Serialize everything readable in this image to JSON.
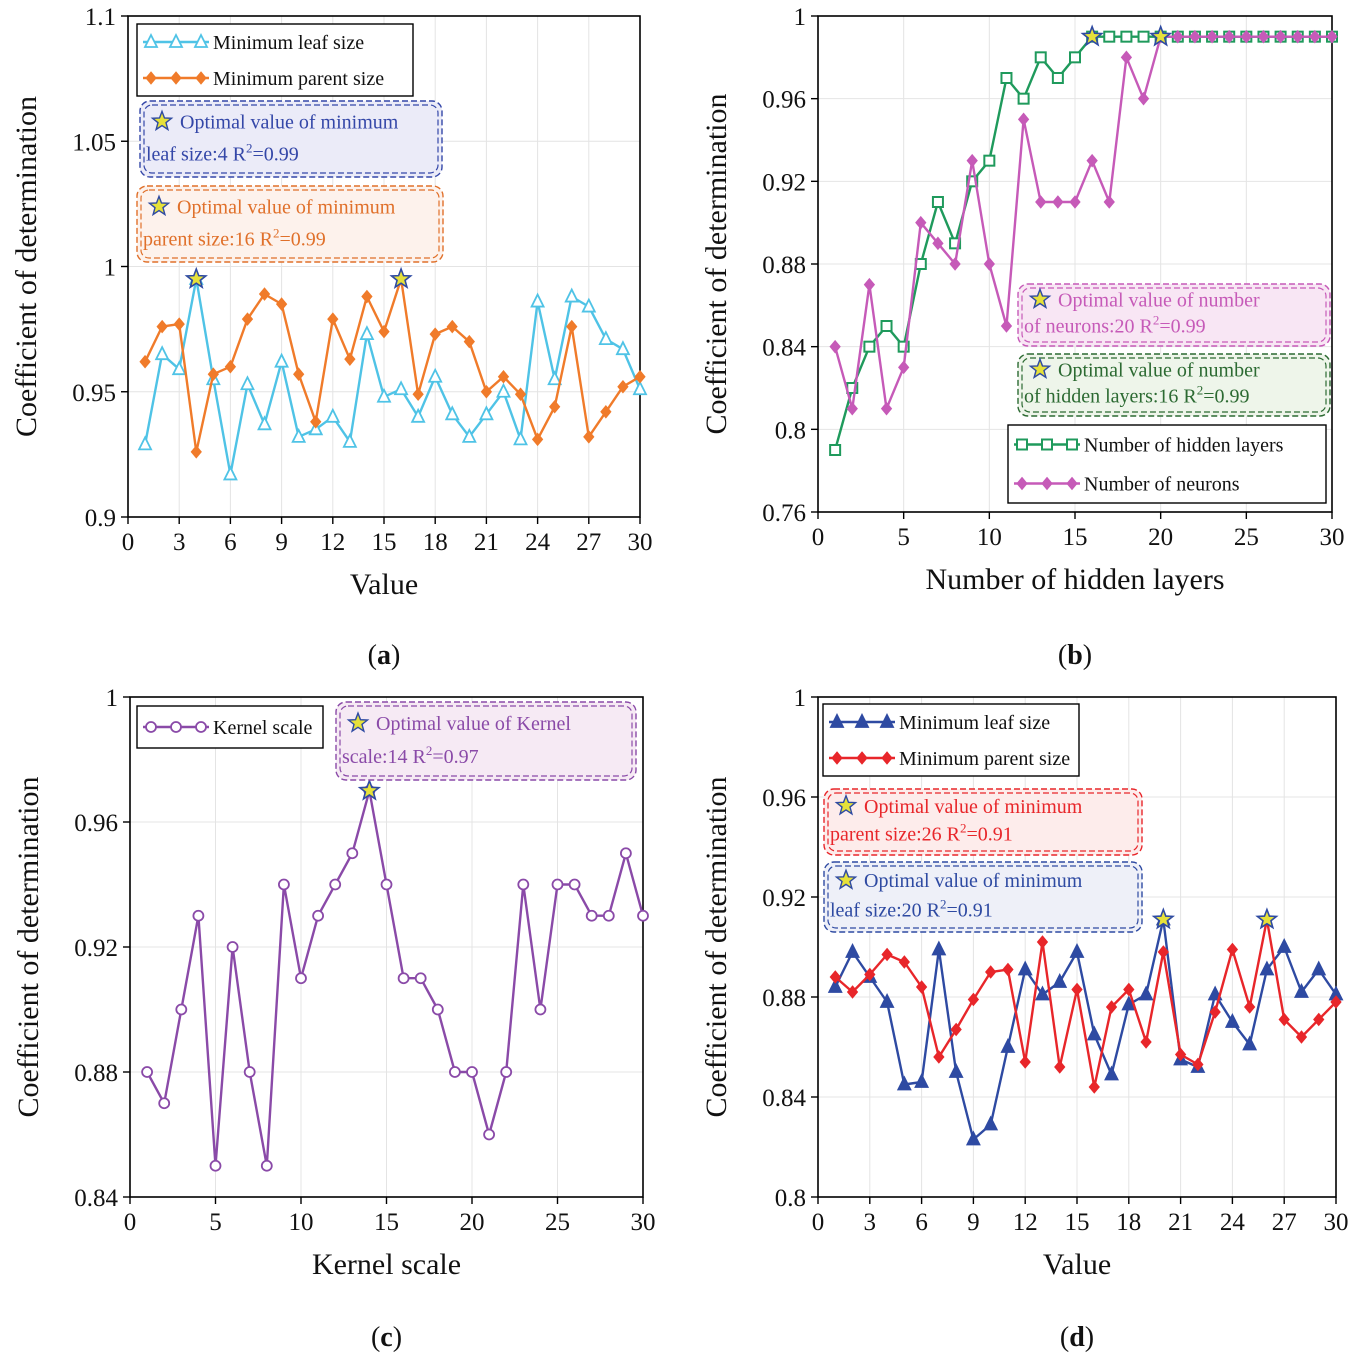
{
  "chart_data": [
    {
      "id": "a",
      "type": "line",
      "caption": "(a)",
      "xlabel": "Value",
      "ylabel": "Coefficient of determination",
      "xlim": [
        0,
        30
      ],
      "ylim": [
        0.9,
        1.1
      ],
      "xticks": [
        0,
        3,
        6,
        9,
        12,
        15,
        18,
        21,
        24,
        27,
        30
      ],
      "yticks": [
        0.9,
        0.95,
        1,
        1.05,
        1.1
      ],
      "ytick_labels": [
        "0.9",
        "0.95",
        "1",
        "1.05",
        "1.1"
      ],
      "grid": true,
      "legend_position": "top-left",
      "series": [
        {
          "name": "Minimum leaf size",
          "color": "#4fc3e6",
          "marker": "triangle-open",
          "x": [
            1,
            2,
            3,
            4,
            5,
            6,
            7,
            8,
            9,
            10,
            11,
            12,
            13,
            14,
            15,
            16,
            17,
            18,
            19,
            20,
            21,
            22,
            23,
            24,
            25,
            26,
            27,
            28,
            29,
            30
          ],
          "values": [
            0.929,
            0.965,
            0.959,
            0.995,
            0.955,
            0.917,
            0.953,
            0.937,
            0.962,
            0.932,
            0.935,
            0.94,
            0.93,
            0.973,
            0.948,
            0.951,
            0.94,
            0.956,
            0.941,
            0.932,
            0.941,
            0.95,
            0.931,
            0.986,
            0.955,
            0.988,
            0.984,
            0.971,
            0.967,
            0.951
          ]
        },
        {
          "name": "Minimum parent size",
          "color": "#f07b2a",
          "marker": "diamond",
          "x": [
            1,
            2,
            3,
            4,
            5,
            6,
            7,
            8,
            9,
            10,
            11,
            12,
            13,
            14,
            15,
            16,
            17,
            18,
            19,
            20,
            21,
            22,
            23,
            24,
            25,
            26,
            27,
            28,
            29,
            30
          ],
          "values": [
            0.962,
            0.976,
            0.977,
            0.926,
            0.957,
            0.96,
            0.979,
            0.989,
            0.985,
            0.957,
            0.938,
            0.979,
            0.963,
            0.988,
            0.974,
            0.995,
            0.949,
            0.973,
            0.976,
            0.97,
            0.95,
            0.956,
            0.949,
            0.931,
            0.944,
            0.976,
            0.932,
            0.942,
            0.952,
            0.956
          ]
        }
      ],
      "optimal_points": [
        {
          "x": 4,
          "y": 0.995,
          "series": "Minimum leaf size"
        },
        {
          "x": 16,
          "y": 0.995,
          "series": "Minimum parent size"
        }
      ],
      "annotations": [
        {
          "line1": "Optimal value of minimum",
          "line2_prefix": "leaf size:4   R",
          "sup": "2",
          "line2_suffix": "=0.99",
          "color": "#3447a8",
          "bg": "#ebebf8"
        },
        {
          "line1": "Optimal value of minimum",
          "line2_prefix": "parent size:16   R",
          "sup": "2",
          "line2_suffix": "=0.99",
          "color": "#e0702a",
          "bg": "#fdf2ec"
        }
      ]
    },
    {
      "id": "b",
      "type": "line",
      "caption": "(b)",
      "xlabel": "Number of hidden layers",
      "ylabel": "Coefficient of determination",
      "xlim": [
        0,
        30
      ],
      "ylim": [
        0.76,
        1.0
      ],
      "xticks": [
        0,
        5,
        10,
        15,
        20,
        25,
        30
      ],
      "yticks": [
        0.76,
        0.8,
        0.84,
        0.88,
        0.92,
        0.96,
        1.0
      ],
      "ytick_labels": [
        "0.76",
        "0.8",
        "0.84",
        "0.88",
        "0.92",
        "0.96",
        "1"
      ],
      "grid": true,
      "legend_position": "bottom-right",
      "series": [
        {
          "name": "Number of hidden layers",
          "color": "#1f9a5c",
          "marker": "square-open",
          "x": [
            1,
            2,
            3,
            4,
            5,
            6,
            7,
            8,
            9,
            10,
            11,
            12,
            13,
            14,
            15,
            16,
            17,
            18,
            19,
            20,
            21,
            22,
            23,
            24,
            25,
            26,
            27,
            28,
            29,
            30
          ],
          "values": [
            0.79,
            0.82,
            0.84,
            0.85,
            0.84,
            0.88,
            0.91,
            0.89,
            0.92,
            0.93,
            0.97,
            0.96,
            0.98,
            0.97,
            0.98,
            0.99,
            0.99,
            0.99,
            0.99,
            0.99,
            0.99,
            0.99,
            0.99,
            0.99,
            0.99,
            0.99,
            0.99,
            0.99,
            0.99,
            0.99
          ]
        },
        {
          "name": "Number of neurons",
          "color": "#c65ab8",
          "marker": "diamond",
          "x": [
            1,
            2,
            3,
            4,
            5,
            6,
            7,
            8,
            9,
            10,
            11,
            12,
            13,
            14,
            15,
            16,
            17,
            18,
            19,
            20,
            21,
            22,
            23,
            24,
            25,
            26,
            27,
            28,
            29,
            30
          ],
          "values": [
            0.84,
            0.81,
            0.87,
            0.81,
            0.83,
            0.9,
            0.89,
            0.88,
            0.93,
            0.88,
            0.85,
            0.95,
            0.91,
            0.91,
            0.91,
            0.93,
            0.91,
            0.98,
            0.96,
            0.99,
            0.99,
            0.99,
            0.99,
            0.99,
            0.99,
            0.99,
            0.99,
            0.99,
            0.99,
            0.99
          ]
        }
      ],
      "optimal_points": [
        {
          "x": 16,
          "y": 0.99,
          "series": "Number of hidden layers"
        },
        {
          "x": 20,
          "y": 0.99,
          "series": "Number of neurons"
        }
      ],
      "annotations": [
        {
          "line1": "Optimal value of number",
          "line2_prefix": "of neurons:20   R",
          "sup": "2",
          "line2_suffix": "=0.99",
          "color": "#c65ab8",
          "bg": "#f8e6f4"
        },
        {
          "line1": "Optimal value of number",
          "line2_prefix": "of hidden layers:16   R",
          "sup": "2",
          "line2_suffix": "=0.99",
          "color": "#2c6a32",
          "bg": "#eef5ea"
        }
      ]
    },
    {
      "id": "c",
      "type": "line",
      "caption": "(c)",
      "xlabel": "Kernel scale",
      "ylabel": "Coefficient of determination",
      "xlim": [
        0,
        30
      ],
      "ylim": [
        0.84,
        1.0
      ],
      "xticks": [
        0,
        5,
        10,
        15,
        20,
        25,
        30
      ],
      "yticks": [
        0.84,
        0.88,
        0.92,
        0.96,
        1.0
      ],
      "ytick_labels": [
        "0.84",
        "0.88",
        "0.92",
        "0.96",
        "1"
      ],
      "grid": true,
      "legend_position": "top-left",
      "series": [
        {
          "name": "Kernel scale",
          "color": "#8a4aa8",
          "marker": "circle-open",
          "x": [
            1,
            2,
            3,
            4,
            5,
            6,
            7,
            8,
            9,
            10,
            11,
            12,
            13,
            14,
            15,
            16,
            17,
            18,
            19,
            20,
            21,
            22,
            23,
            24,
            25,
            26,
            27,
            28,
            29,
            30
          ],
          "values": [
            0.88,
            0.87,
            0.9,
            0.93,
            0.85,
            0.92,
            0.88,
            0.85,
            0.94,
            0.91,
            0.93,
            0.94,
            0.95,
            0.97,
            0.94,
            0.91,
            0.91,
            0.9,
            0.88,
            0.88,
            0.86,
            0.88,
            0.94,
            0.9,
            0.94,
            0.94,
            0.93,
            0.93,
            0.95,
            0.93
          ]
        }
      ],
      "optimal_points": [
        {
          "x": 14,
          "y": 0.97,
          "series": "Kernel scale"
        }
      ],
      "annotations": [
        {
          "line1": "Optimal value of Kernel",
          "line2_prefix": "scale:14   R",
          "sup": "2",
          "line2_suffix": "=0.97",
          "color": "#8a4aa8",
          "bg": "#f6eaf4"
        }
      ]
    },
    {
      "id": "d",
      "type": "line",
      "caption": "(d)",
      "xlabel": "Value",
      "ylabel": "Coefficient of determination",
      "xlim": [
        0,
        30
      ],
      "ylim": [
        0.8,
        1.0
      ],
      "xticks": [
        0,
        3,
        6,
        9,
        12,
        15,
        18,
        21,
        24,
        27,
        30
      ],
      "yticks": [
        0.8,
        0.84,
        0.88,
        0.92,
        0.96,
        1.0
      ],
      "ytick_labels": [
        "0.8",
        "0.84",
        "0.88",
        "0.92",
        "0.96",
        "1"
      ],
      "grid": true,
      "legend_position": "top-left",
      "series": [
        {
          "name": "Minimum leaf size",
          "color": "#2e4aa2",
          "marker": "triangle",
          "x": [
            1,
            2,
            3,
            4,
            5,
            6,
            7,
            8,
            9,
            10,
            11,
            12,
            13,
            14,
            15,
            16,
            17,
            18,
            19,
            20,
            21,
            22,
            23,
            24,
            25,
            26,
            27,
            28,
            29,
            30
          ],
          "values": [
            0.884,
            0.898,
            0.888,
            0.878,
            0.845,
            0.846,
            0.899,
            0.85,
            0.823,
            0.829,
            0.86,
            0.891,
            0.881,
            0.886,
            0.898,
            0.865,
            0.849,
            0.877,
            0.881,
            0.911,
            0.855,
            0.852,
            0.881,
            0.87,
            0.861,
            0.891,
            0.9,
            0.882,
            0.891,
            0.881
          ]
        },
        {
          "name": "Minimum parent size",
          "color": "#e8262a",
          "marker": "diamond",
          "x": [
            1,
            2,
            3,
            4,
            5,
            6,
            7,
            8,
            9,
            10,
            11,
            12,
            13,
            14,
            15,
            16,
            17,
            18,
            19,
            20,
            21,
            22,
            23,
            24,
            25,
            26,
            27,
            28,
            29,
            30
          ],
          "values": [
            0.888,
            0.882,
            0.889,
            0.897,
            0.894,
            0.884,
            0.856,
            0.867,
            0.879,
            0.89,
            0.891,
            0.854,
            0.902,
            0.852,
            0.883,
            0.844,
            0.876,
            0.883,
            0.862,
            0.898,
            0.857,
            0.853,
            0.874,
            0.899,
            0.876,
            0.911,
            0.871,
            0.864,
            0.871,
            0.878
          ]
        }
      ],
      "optimal_points": [
        {
          "x": 20,
          "y": 0.911,
          "series": "Minimum leaf size"
        },
        {
          "x": 26,
          "y": 0.911,
          "series": "Minimum parent size"
        }
      ],
      "annotations": [
        {
          "line1": "Optimal value of minimum",
          "line2_prefix": "parent size:26   R",
          "sup": "2",
          "line2_suffix": "=0.91",
          "color": "#e8262a",
          "bg": "#fdeceb"
        },
        {
          "line1": "Optimal value of minimum",
          "line2_prefix": "leaf size:20   R",
          "sup": "2",
          "line2_suffix": "=0.91",
          "color": "#2e4aa2",
          "bg": "#eef0f8"
        }
      ]
    }
  ],
  "colors": {
    "axis": "#000000",
    "grid": "#e4e4e4",
    "star_fill": "#e6e13a",
    "star_stroke": "#2e4aa2"
  }
}
